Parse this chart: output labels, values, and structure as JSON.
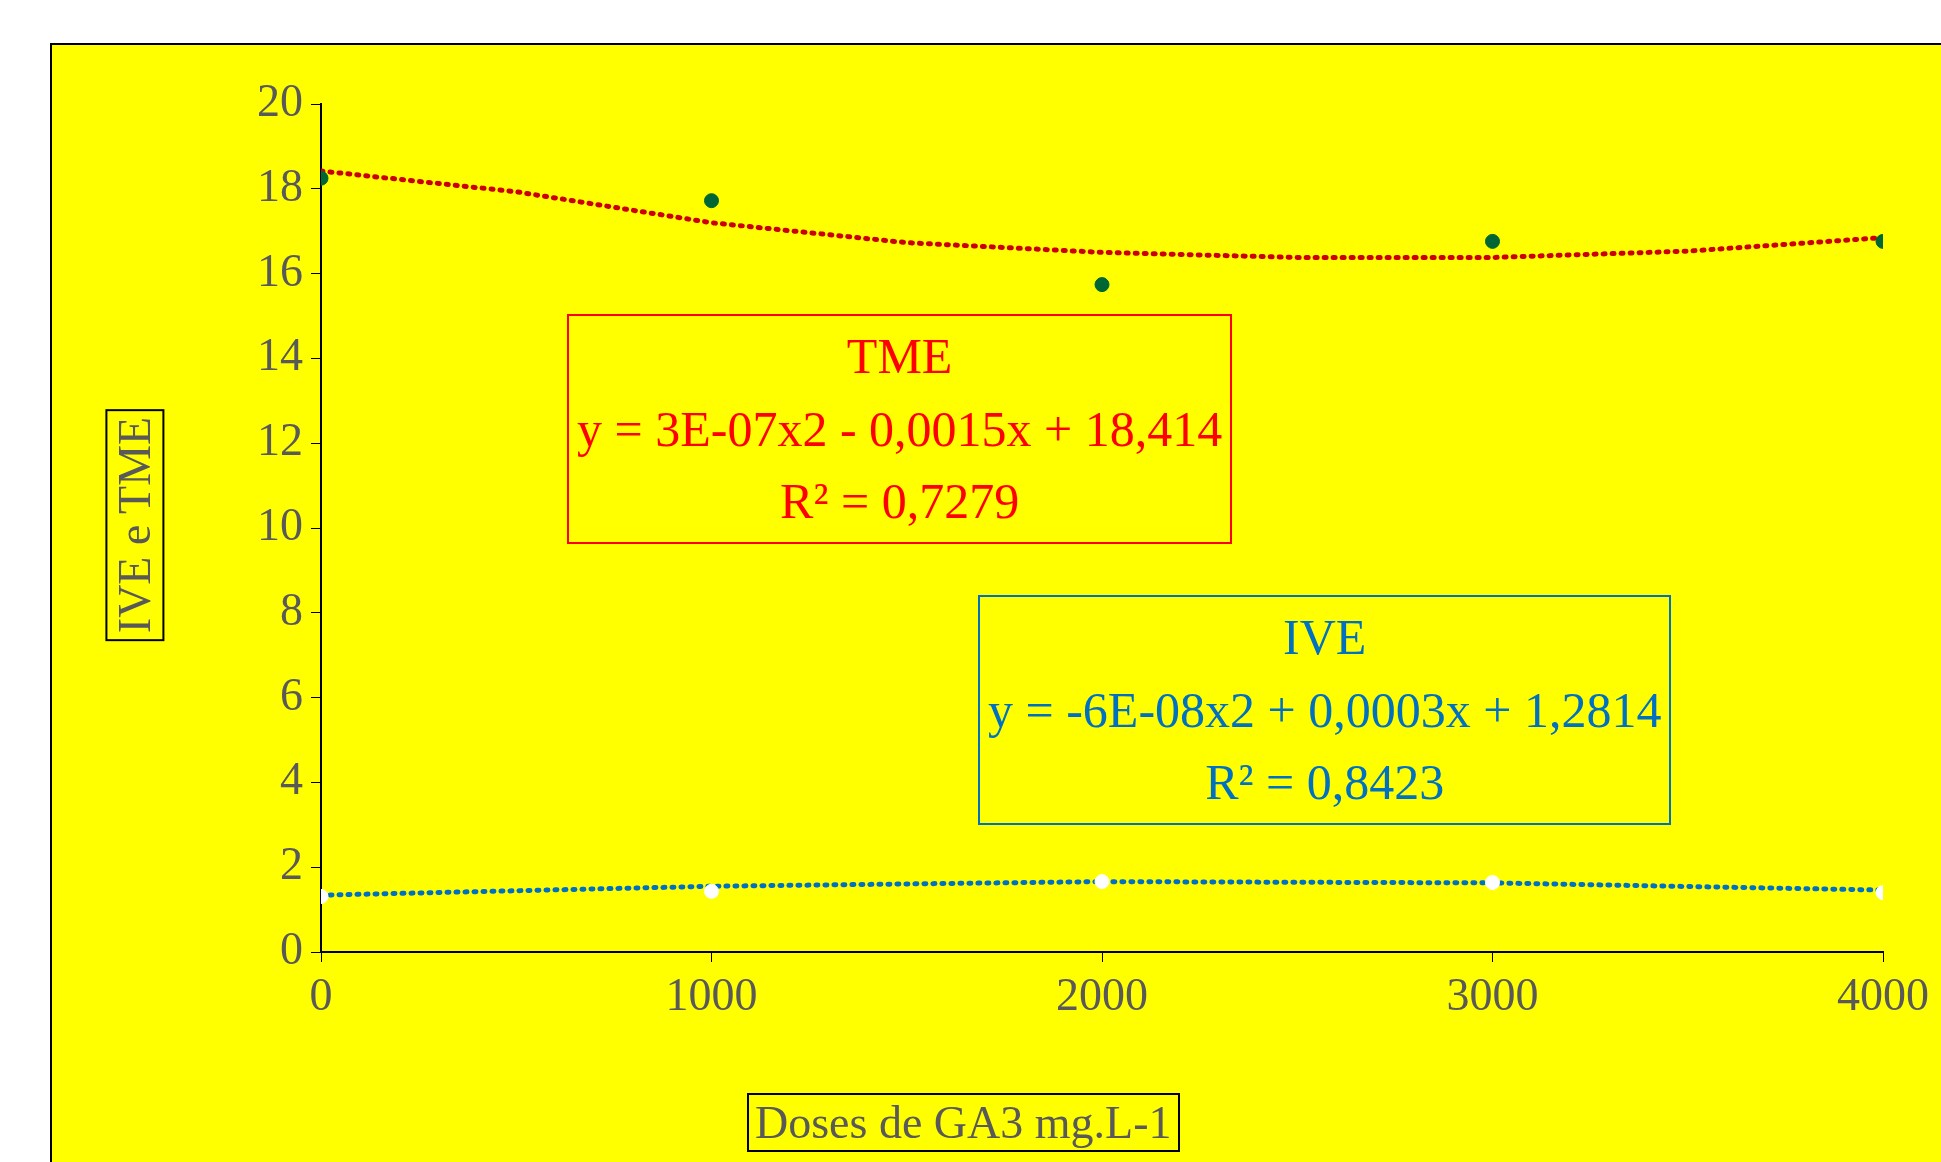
{
  "chart_data": {
    "type": "scatter",
    "xlabel": "Doses de GA3 mg.L-1",
    "ylabel": "IVE e TME",
    "x": [
      0,
      1000,
      2000,
      3000,
      4000
    ],
    "series": [
      {
        "type": "scatter",
        "color": "#006633",
        "marker": "circle",
        "values": [
          18.25,
          17.72,
          15.74,
          16.76,
          16.76
        ]
      },
      {
        "type": "scatter",
        "color": "#ffffff",
        "marker": "circle",
        "values": [
          1.31,
          1.43,
          1.66,
          1.64,
          1.4
        ]
      },
      {
        "type": "line",
        "color": "#cc0000",
        "line_style": "dotted",
        "marker": "none",
        "x": [
          0,
          500,
          1000,
          1500,
          2000,
          2500,
          3000,
          3500,
          4000
        ],
        "values": [
          18.42,
          17.93,
          17.2,
          16.73,
          16.5,
          16.38,
          16.38,
          16.53,
          16.85
        ]
      },
      {
        "type": "line",
        "color": "#0070c0",
        "line_style": "dotted",
        "marker": "none",
        "x": [
          0,
          1000,
          2000,
          3000,
          4000
        ],
        "values": [
          1.34,
          1.55,
          1.66,
          1.63,
          1.46
        ]
      }
    ],
    "annotations": [
      "TME\ny = 3E-07x2 - 0,0015x + 18,414\nR² = 0,7279",
      "IVE\ny = -6E-08x2 + 0,0003x + 1,2814\nR² = 0,8423"
    ],
    "xlim": [
      0,
      4000
    ],
    "xticks": [
      0,
      1000,
      2000,
      3000,
      4000
    ],
    "ylim": [
      0,
      20
    ],
    "yticks": [
      0,
      2,
      4,
      6,
      8,
      10,
      12,
      14,
      16,
      18,
      20
    ],
    "grid": false,
    "legend": false
  }
}
